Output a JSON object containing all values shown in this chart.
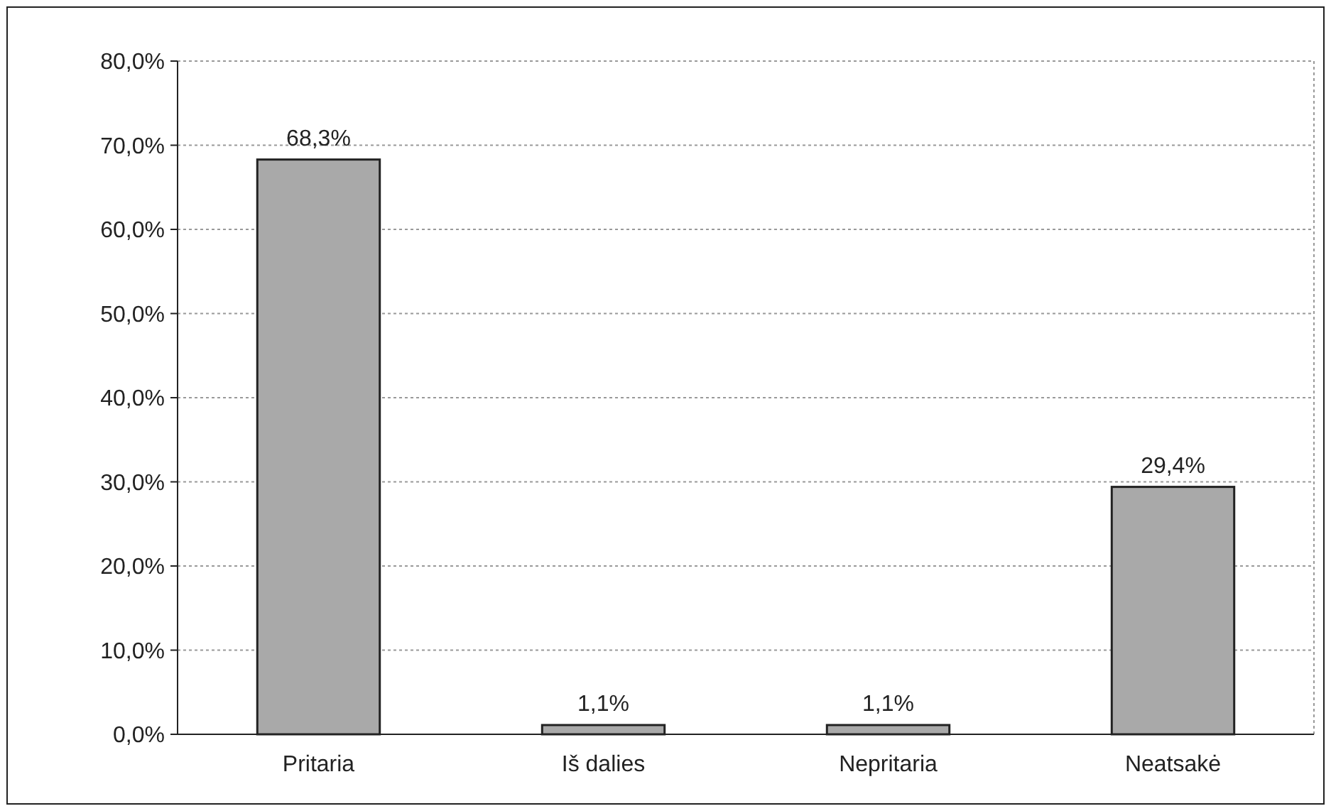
{
  "chart_data": {
    "type": "bar",
    "categories": [
      "Pritaria",
      "Iš dalies",
      "Nepritaria",
      "Neatsakė"
    ],
    "values": [
      68.3,
      1.1,
      1.1,
      29.4
    ],
    "value_labels": [
      "68,3%",
      "1,1%",
      "1,1%",
      "29,4%"
    ],
    "color": "#a9a9a9",
    "ylim": [
      0,
      80
    ],
    "yticks": [
      {
        "value": 0,
        "label": "0,0%"
      },
      {
        "value": 10,
        "label": "10,0%"
      },
      {
        "value": 20,
        "label": "20,0%"
      },
      {
        "value": 30,
        "label": "30,0%"
      },
      {
        "value": 40,
        "label": "40,0%"
      },
      {
        "value": 50,
        "label": "50,0%"
      },
      {
        "value": 60,
        "label": "60,0%"
      },
      {
        "value": 70,
        "label": "70,0%"
      },
      {
        "value": 80,
        "label": "80,0%"
      }
    ],
    "grid": "y"
  }
}
